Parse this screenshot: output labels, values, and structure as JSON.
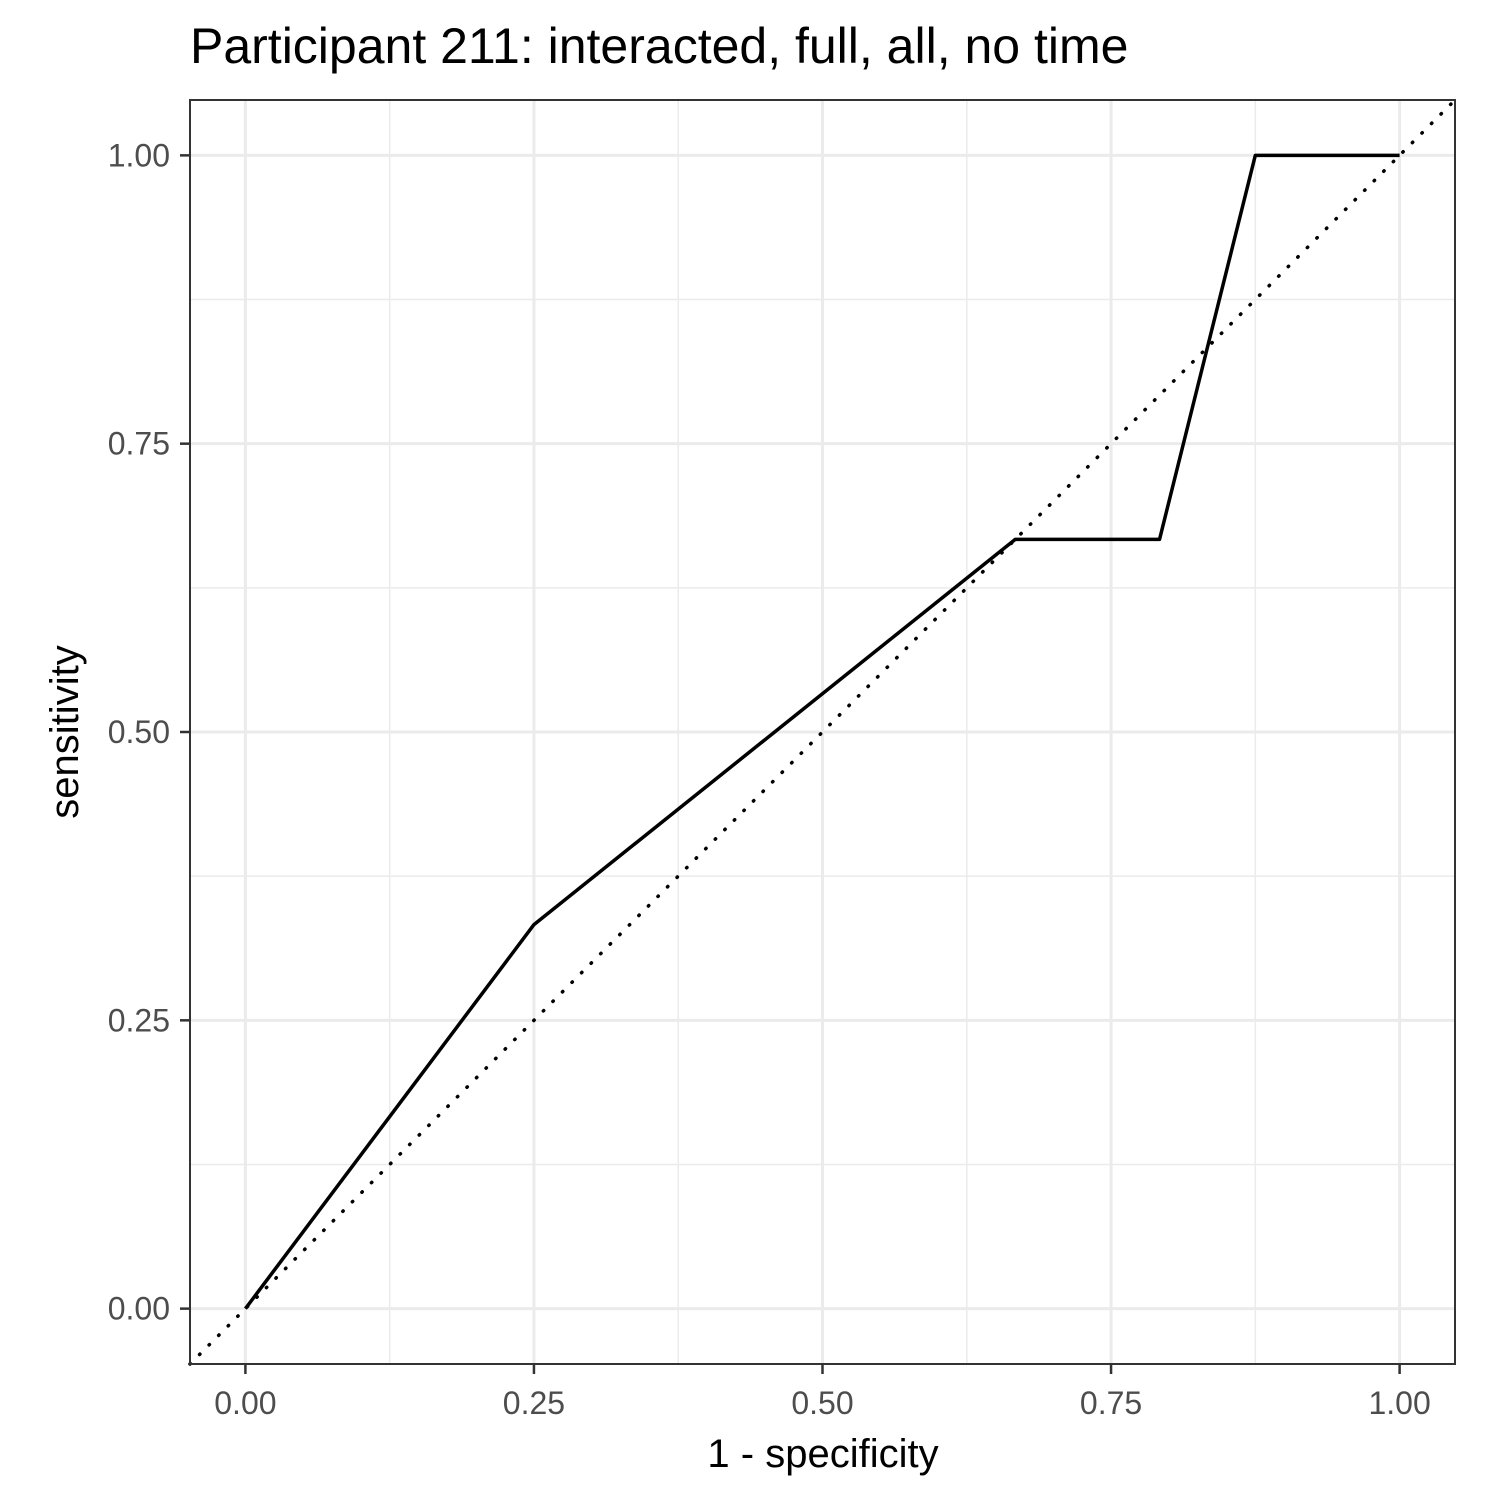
{
  "chart_data": {
    "type": "line",
    "title": "Participant 211: interacted, full, all, no time",
    "xlabel": "1 - specificity",
    "ylabel": "sensitivity",
    "xlim": [
      -0.048,
      1.048
    ],
    "ylim": [
      -0.048,
      1.048
    ],
    "x_ticks": [
      0,
      0.25,
      0.5,
      0.75,
      1
    ],
    "x_tick_labels": [
      "0.00",
      "0.25",
      "0.50",
      "0.75",
      "1.00"
    ],
    "y_ticks": [
      0,
      0.25,
      0.5,
      0.75,
      1
    ],
    "y_tick_labels": [
      "0.00",
      "0.25",
      "0.50",
      "0.75",
      "1.00"
    ],
    "x_minor_ticks": [
      0.125,
      0.375,
      0.625,
      0.875
    ],
    "y_minor_ticks": [
      0.125,
      0.375,
      0.625,
      0.875
    ],
    "grid": true,
    "series": [
      {
        "style": "solid",
        "color": "#000000",
        "x": [
          0,
          0.25,
          0.667,
          0.792,
          0.875,
          1.0
        ],
        "y": [
          0,
          0.333,
          0.667,
          0.667,
          1.0,
          1.0
        ]
      }
    ],
    "reference_line": {
      "style": "dotted",
      "color": "#000000",
      "slope": 1,
      "intercept": 0
    },
    "colors": {
      "panel_border": "#333333",
      "grid_major": "#ebebeb",
      "grid_minor": "#ebebeb",
      "tick_text": "#4d4d4d",
      "line": "#000000"
    }
  }
}
